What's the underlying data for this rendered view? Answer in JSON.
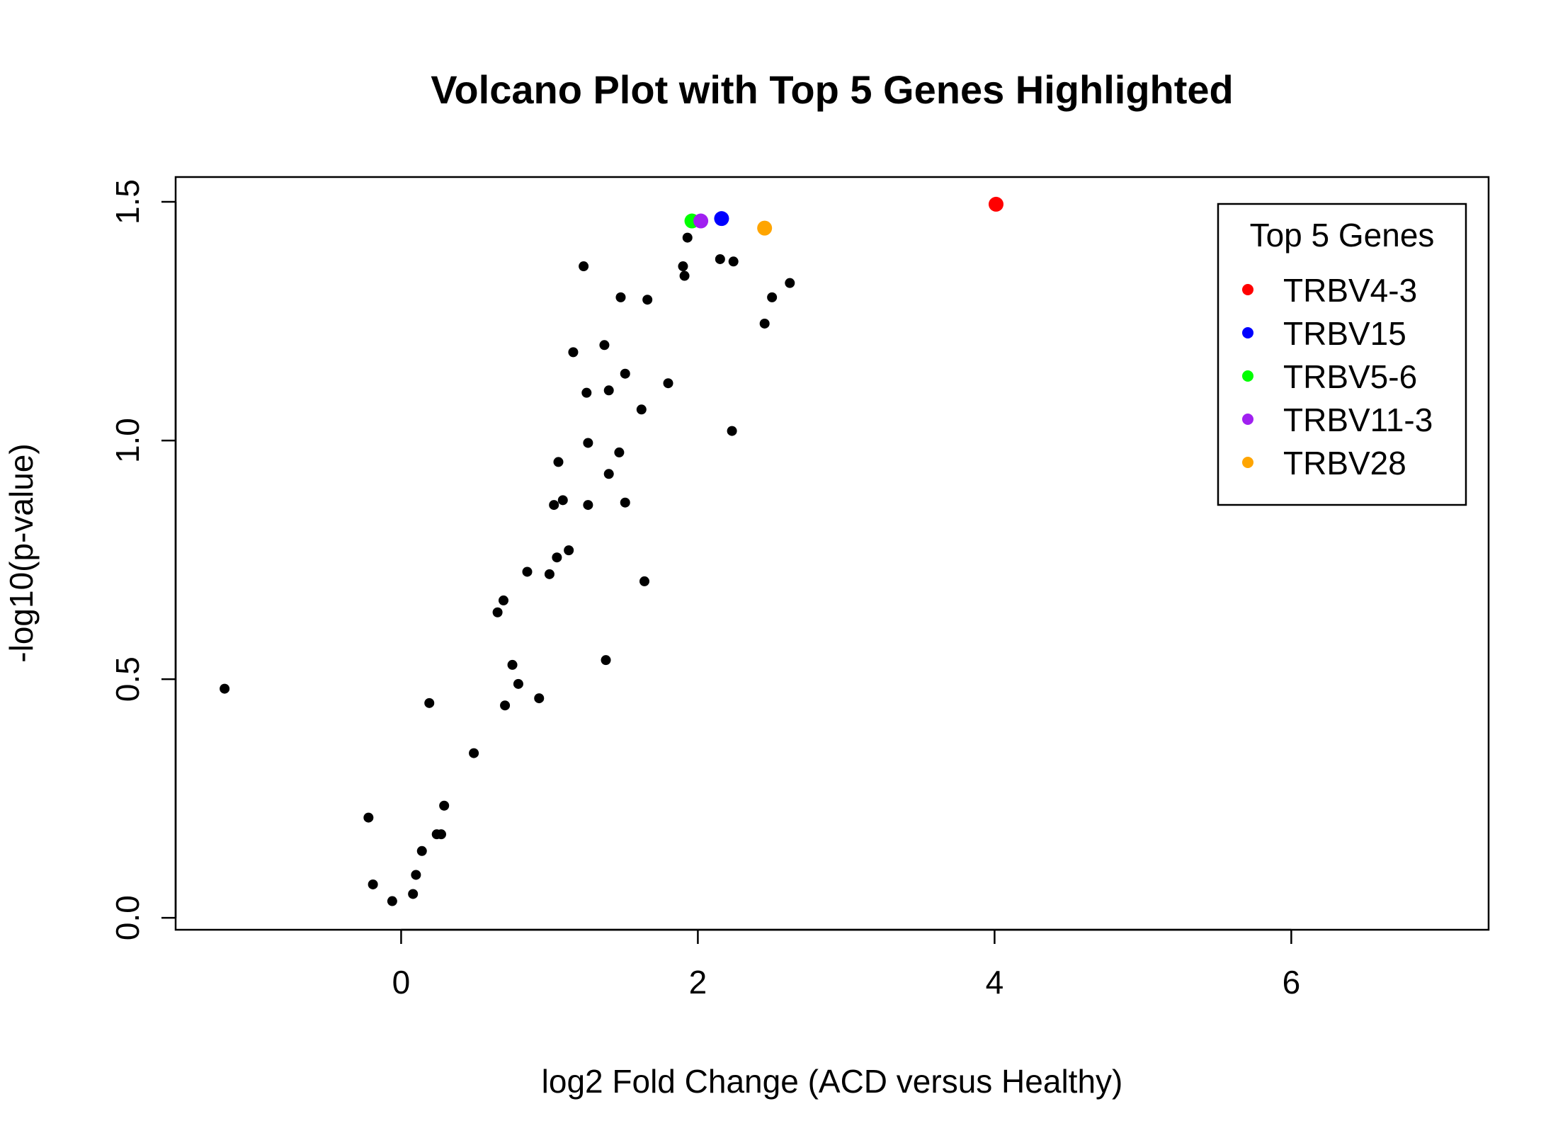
{
  "chart_data": {
    "type": "scatter",
    "title": "Volcano Plot with Top 5 Genes Highlighted",
    "xlabel": "log2 Fold Change (ACD versus Healthy)",
    "ylabel": "-log10(p-value)",
    "xlim": [
      -1.52,
      7.33
    ],
    "ylim": [
      -0.025,
      1.552
    ],
    "xticks": [
      0,
      2,
      4,
      6
    ],
    "xtick_labels": [
      "0",
      "2",
      "4",
      "6"
    ],
    "yticks": [
      0.0,
      0.5,
      1.0,
      1.5
    ],
    "ytick_labels": [
      "0.0",
      "0.5",
      "1.0",
      "1.5"
    ],
    "grid": false,
    "legend": {
      "title": "Top 5 Genes",
      "placement": "top-right",
      "entries": [
        {
          "label": "TRBV4-3",
          "color": "#ff0000"
        },
        {
          "label": "TRBV15",
          "color": "#0000ff"
        },
        {
          "label": "TRBV5-6",
          "color": "#00ff00"
        },
        {
          "label": "TRBV11-3",
          "color": "#a020f0"
        },
        {
          "label": "TRBV28",
          "color": "#ffa500"
        }
      ]
    },
    "series": [
      {
        "color": "#000000",
        "points": [
          [
            -1.19,
            0.48
          ],
          [
            -0.22,
            0.21
          ],
          [
            -0.19,
            0.07
          ],
          [
            -0.06,
            0.035
          ],
          [
            0.08,
            0.05
          ],
          [
            0.1,
            0.09
          ],
          [
            0.14,
            0.14
          ],
          [
            0.19,
            0.45
          ],
          [
            0.24,
            0.175
          ],
          [
            0.27,
            0.175
          ],
          [
            0.29,
            0.235
          ],
          [
            0.49,
            0.345
          ],
          [
            0.65,
            0.64
          ],
          [
            0.69,
            0.665
          ],
          [
            0.7,
            0.445
          ],
          [
            0.75,
            0.53
          ],
          [
            0.79,
            0.49
          ],
          [
            0.85,
            0.725
          ],
          [
            0.93,
            0.46
          ],
          [
            1.0,
            0.72
          ],
          [
            1.03,
            0.865
          ],
          [
            1.05,
            0.755
          ],
          [
            1.06,
            0.955
          ],
          [
            1.09,
            0.875
          ],
          [
            1.13,
            0.77
          ],
          [
            1.16,
            1.185
          ],
          [
            1.23,
            1.365
          ],
          [
            1.25,
            1.1
          ],
          [
            1.26,
            0.995
          ],
          [
            1.26,
            0.865
          ],
          [
            1.37,
            1.2
          ],
          [
            1.38,
            0.54
          ],
          [
            1.4,
            0.93
          ],
          [
            1.4,
            1.105
          ],
          [
            1.47,
            0.975
          ],
          [
            1.48,
            1.3
          ],
          [
            1.51,
            1.14
          ],
          [
            1.51,
            0.87
          ],
          [
            1.62,
            1.065
          ],
          [
            1.64,
            0.705
          ],
          [
            1.66,
            1.295
          ],
          [
            1.8,
            1.12
          ],
          [
            1.9,
            1.365
          ],
          [
            1.91,
            1.345
          ],
          [
            1.93,
            1.425
          ],
          [
            2.15,
            1.38
          ],
          [
            2.23,
            1.02
          ],
          [
            2.24,
            1.375
          ],
          [
            2.45,
            1.245
          ],
          [
            2.5,
            1.3
          ],
          [
            2.62,
            1.33
          ]
        ]
      },
      {
        "name": "TRBV4-3",
        "color": "#ff0000",
        "points": [
          [
            4.01,
            1.495
          ]
        ]
      },
      {
        "name": "TRBV15",
        "color": "#0000ff",
        "points": [
          [
            2.16,
            1.465
          ]
        ]
      },
      {
        "name": "TRBV5-6",
        "color": "#00ff00",
        "points": [
          [
            1.96,
            1.46
          ]
        ]
      },
      {
        "name": "TRBV11-3",
        "color": "#a020f0",
        "points": [
          [
            2.02,
            1.46
          ]
        ]
      },
      {
        "name": "TRBV28",
        "color": "#ffa500",
        "points": [
          [
            2.45,
            1.445
          ]
        ]
      }
    ]
  }
}
